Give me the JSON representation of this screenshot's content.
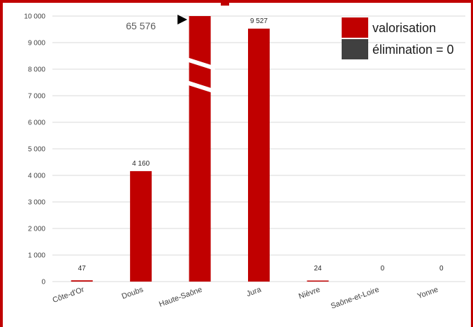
{
  "chart_data": {
    "type": "bar",
    "categories": [
      "Côte-d'Or",
      "Doubs",
      "Haute-Saône",
      "Jura",
      "Nièvre",
      "Saône-et-Loire",
      "Yonne"
    ],
    "series": [
      {
        "name": "valorisation",
        "color": "#c00000",
        "values": [
          47,
          4160,
          65576,
          9527,
          24,
          0,
          0
        ]
      },
      {
        "name": "élimination = 0",
        "color": "#404040",
        "values": [
          0,
          0,
          0,
          0,
          0,
          0,
          0
        ]
      }
    ],
    "data_labels": [
      "47",
      "4 160",
      "",
      "9 527",
      "24",
      "0",
      "0"
    ],
    "callout_label": "65 576",
    "y_ticks": [
      "0",
      "1 000",
      "2 000",
      "3 000",
      "4 000",
      "5 000",
      "6 000",
      "7 000",
      "8 000",
      "9 000",
      "10 000"
    ],
    "ylim": [
      0,
      10000
    ],
    "axis_break": true,
    "grid": true,
    "legend_position": "top-right"
  }
}
